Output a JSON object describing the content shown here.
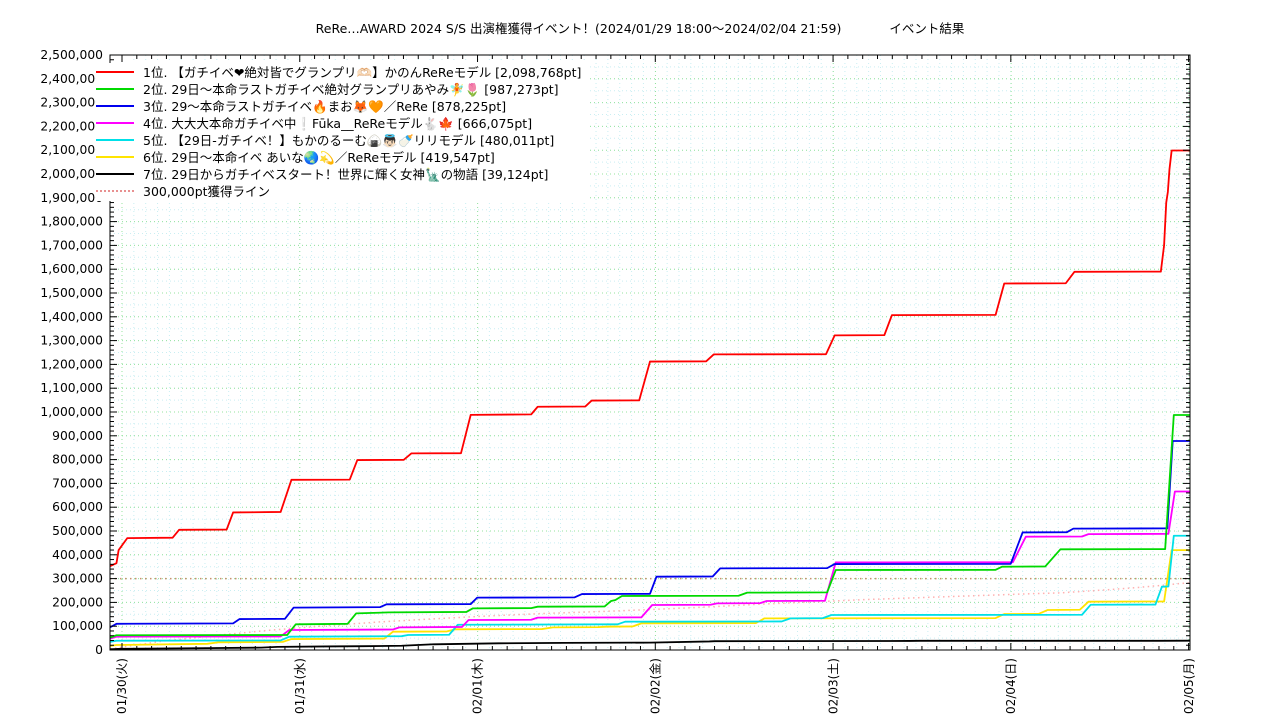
{
  "header": {
    "title": "ReRe…AWARD 2024 S/S 出演権獲得イベント！(2024/01/29 18:00～2024/02/04 21:59)",
    "result_label": "イベント結果"
  },
  "chart_data": {
    "type": "line",
    "title": "ReRe…AWARD 2024 S/S 出演権獲得イベント！(2024/01/29 18:00～2024/02/04 21:59) イベント結果",
    "xlabel": "",
    "ylabel": "",
    "x_axis": {
      "tick_labels": [
        "01/30(火)",
        "01/31(水)",
        "02/01(木)",
        "02/02(金)",
        "02/03(土)",
        "02/04(日)",
        "02/05(月)"
      ],
      "tick_positions": [
        0.0111,
        0.1757,
        0.3404,
        0.5051,
        0.6697,
        0.8344,
        0.9991
      ],
      "minor_ticks_per_day": 12,
      "minor_grid_per_day": 15
    },
    "y_axis": {
      "min": 0,
      "max": 2500000,
      "major_step": 100000,
      "minor_tick_step": 20000,
      "minor_grid_step": 50000
    },
    "grid": {
      "minor_color": "#c9eef2",
      "major_color": "#96e39e",
      "legend_position": "top-left",
      "grid_on": true
    },
    "threshold_line": {
      "label": "300,000pt獲得ライン",
      "value": 300000,
      "color": "#c8906c",
      "legend_color": "#e89090"
    },
    "pace_line": {
      "color": "#ffb0b0",
      "points": [
        [
          0,
          5000
        ],
        [
          0.05,
          38000
        ],
        [
          0.1,
          62000
        ],
        [
          0.15,
          84000
        ],
        [
          0.2,
          102000
        ],
        [
          0.25,
          118000
        ],
        [
          0.3,
          131000
        ],
        [
          0.35,
          143000
        ],
        [
          0.4,
          153000
        ],
        [
          0.45,
          161000
        ],
        [
          0.49,
          168000
        ],
        [
          0.55,
          180000
        ],
        [
          0.6,
          192000
        ],
        [
          0.65,
          202000
        ],
        [
          0.7,
          212000
        ],
        [
          0.75,
          220000
        ],
        [
          0.8,
          228000
        ],
        [
          0.85,
          236000
        ],
        [
          0.88,
          240000
        ],
        [
          0.92,
          252000
        ],
        [
          0.95,
          262000
        ],
        [
          0.975,
          272000
        ],
        [
          0.99,
          279000
        ],
        [
          1,
          282000
        ]
      ]
    },
    "series": [
      {
        "rank": 1,
        "label": "1位. 【ガチイベ❤絶対皆でグランプリ🫶🏻】かのんReReモデル [2,098,768pt]",
        "color": "#ff0000",
        "final_pt": 2098768,
        "points": [
          [
            0,
            352000
          ],
          [
            0.006,
            365000
          ],
          [
            0.008,
            420000
          ],
          [
            0.016,
            470000
          ],
          [
            0.058,
            472000
          ],
          [
            0.064,
            505000
          ],
          [
            0.108,
            506000
          ],
          [
            0.114,
            578000
          ],
          [
            0.158,
            580000
          ],
          [
            0.168,
            715000
          ],
          [
            0.222,
            716000
          ],
          [
            0.229,
            798000
          ],
          [
            0.272,
            799000
          ],
          [
            0.279,
            826000
          ],
          [
            0.325,
            827000
          ],
          [
            0.334,
            988000
          ],
          [
            0.39,
            990000
          ],
          [
            0.396,
            1022000
          ],
          [
            0.44,
            1023000
          ],
          [
            0.446,
            1048000
          ],
          [
            0.49,
            1049000
          ],
          [
            0.5,
            1212000
          ],
          [
            0.552,
            1213000
          ],
          [
            0.559,
            1242000
          ],
          [
            0.663,
            1243000
          ],
          [
            0.671,
            1322000
          ],
          [
            0.717,
            1323000
          ],
          [
            0.724,
            1407000
          ],
          [
            0.82,
            1408000
          ],
          [
            0.828,
            1540000
          ],
          [
            0.885,
            1541000
          ],
          [
            0.893,
            1589000
          ],
          [
            0.973,
            1590000
          ],
          [
            0.976,
            1700000
          ],
          [
            0.978,
            1880000
          ],
          [
            0.9795,
            1925000
          ],
          [
            0.981,
            2020000
          ],
          [
            0.983,
            2098768
          ],
          [
            1,
            2098768
          ]
        ]
      },
      {
        "rank": 2,
        "label": "2位. 29日～本命ラストガチイベ絶対グランプリあやみ🧚🌷 [987,273pt]",
        "color": "#00d900",
        "final_pt": 987273,
        "points": [
          [
            0,
            52000
          ],
          [
            0.006,
            62000
          ],
          [
            0.164,
            63000
          ],
          [
            0.172,
            108000
          ],
          [
            0.22,
            110000
          ],
          [
            0.228,
            154000
          ],
          [
            0.258,
            158000
          ],
          [
            0.33,
            160000
          ],
          [
            0.336,
            175000
          ],
          [
            0.39,
            176000
          ],
          [
            0.396,
            182000
          ],
          [
            0.458,
            183000
          ],
          [
            0.464,
            206000
          ],
          [
            0.468,
            210000
          ],
          [
            0.474,
            227000
          ],
          [
            0.582,
            228000
          ],
          [
            0.59,
            241000
          ],
          [
            0.664,
            242000
          ],
          [
            0.672,
            336000
          ],
          [
            0.82,
            337000
          ],
          [
            0.826,
            350000
          ],
          [
            0.866,
            351000
          ],
          [
            0.88,
            423000
          ],
          [
            0.977,
            424000
          ],
          [
            0.985,
            987273
          ],
          [
            1,
            987273
          ]
        ]
      },
      {
        "rank": 3,
        "label": "3位. 29～本命ラストガチイベ🔥まお🦊🧡／ReRe [878,225pt]",
        "color": "#0000ee",
        "final_pt": 878225,
        "points": [
          [
            0,
            95000
          ],
          [
            0.006,
            110000
          ],
          [
            0.114,
            112000
          ],
          [
            0.12,
            130000
          ],
          [
            0.162,
            131000
          ],
          [
            0.17,
            178000
          ],
          [
            0.25,
            180000
          ],
          [
            0.256,
            192000
          ],
          [
            0.334,
            193000
          ],
          [
            0.34,
            220000
          ],
          [
            0.43,
            221000
          ],
          [
            0.437,
            235000
          ],
          [
            0.5,
            236000
          ],
          [
            0.506,
            308000
          ],
          [
            0.558,
            309000
          ],
          [
            0.565,
            343000
          ],
          [
            0.664,
            344000
          ],
          [
            0.671,
            361000
          ],
          [
            0.834,
            362000
          ],
          [
            0.845,
            494000
          ],
          [
            0.886,
            495000
          ],
          [
            0.892,
            510000
          ],
          [
            0.979,
            511000
          ],
          [
            0.984,
            878225
          ],
          [
            1,
            878225
          ]
        ]
      },
      {
        "rank": 4,
        "label": "4位. 大大大本命ガチイベ中❕Fūka__ReReモデル🐇🍁 [666,075pt]",
        "color": "#ff00ff",
        "final_pt": 666075,
        "points": [
          [
            0,
            48000
          ],
          [
            0.006,
            56000
          ],
          [
            0.158,
            57000
          ],
          [
            0.166,
            84000
          ],
          [
            0.262,
            86000
          ],
          [
            0.268,
            95000
          ],
          [
            0.326,
            97000
          ],
          [
            0.332,
            126000
          ],
          [
            0.39,
            127000
          ],
          [
            0.396,
            136000
          ],
          [
            0.492,
            137000
          ],
          [
            0.502,
            189000
          ],
          [
            0.556,
            190000
          ],
          [
            0.562,
            196000
          ],
          [
            0.602,
            197000
          ],
          [
            0.608,
            206000
          ],
          [
            0.662,
            207000
          ],
          [
            0.672,
            368000
          ],
          [
            0.836,
            369000
          ],
          [
            0.848,
            476000
          ],
          [
            0.9,
            477000
          ],
          [
            0.906,
            487000
          ],
          [
            0.98,
            488000
          ],
          [
            0.986,
            666075
          ],
          [
            1,
            666075
          ]
        ]
      },
      {
        "rank": 5,
        "label": "5位. 【29日-ガチイベ！】もかのるーむ🍙👼🏻🍼リリモデル [480,011pt]",
        "color": "#00e0e8",
        "final_pt": 480011,
        "points": [
          [
            0,
            34000
          ],
          [
            0.006,
            39000
          ],
          [
            0.158,
            40000
          ],
          [
            0.166,
            56000
          ],
          [
            0.27,
            58000
          ],
          [
            0.276,
            63000
          ],
          [
            0.314,
            64000
          ],
          [
            0.322,
            106000
          ],
          [
            0.47,
            108000
          ],
          [
            0.477,
            119000
          ],
          [
            0.622,
            120000
          ],
          [
            0.63,
            133000
          ],
          [
            0.66,
            134000
          ],
          [
            0.668,
            147000
          ],
          [
            0.9,
            148000
          ],
          [
            0.908,
            190000
          ],
          [
            0.968,
            191000
          ],
          [
            0.974,
            266000
          ],
          [
            0.98,
            267000
          ],
          [
            0.985,
            480011
          ],
          [
            1,
            480011
          ]
        ]
      },
      {
        "rank": 6,
        "label": "6位. 29日～本命イベ あいな🌏💫／ReReモデル [419,547pt]",
        "color": "#ffe400",
        "final_pt": 419547,
        "points": [
          [
            0,
            17000
          ],
          [
            0.006,
            21000
          ],
          [
            0.09,
            26000
          ],
          [
            0.1,
            32000
          ],
          [
            0.16,
            34000
          ],
          [
            0.168,
            46000
          ],
          [
            0.254,
            48000
          ],
          [
            0.262,
            77000
          ],
          [
            0.312,
            78000
          ],
          [
            0.32,
            87000
          ],
          [
            0.4,
            88000
          ],
          [
            0.41,
            95000
          ],
          [
            0.452,
            96000
          ],
          [
            0.46,
            98000
          ],
          [
            0.484,
            99000
          ],
          [
            0.492,
            112000
          ],
          [
            0.598,
            113000
          ],
          [
            0.606,
            133000
          ],
          [
            0.82,
            134000
          ],
          [
            0.828,
            151000
          ],
          [
            0.86,
            152000
          ],
          [
            0.868,
            168000
          ],
          [
            0.898,
            169000
          ],
          [
            0.906,
            203000
          ],
          [
            0.976,
            204000
          ],
          [
            0.983,
            419547
          ],
          [
            1,
            419547
          ]
        ]
      },
      {
        "rank": 7,
        "label": "7位. 29日からガチイベスタート！世界に輝く女神🗽の物語 [39,124pt]",
        "color": "#000000",
        "final_pt": 39124,
        "points": [
          [
            0,
            3000
          ],
          [
            0.01,
            5000
          ],
          [
            0.09,
            8000
          ],
          [
            0.14,
            10000
          ],
          [
            0.155,
            13000
          ],
          [
            0.2,
            15000
          ],
          [
            0.235,
            16000
          ],
          [
            0.27,
            18000
          ],
          [
            0.3,
            24000
          ],
          [
            0.36,
            28000
          ],
          [
            0.42,
            30000
          ],
          [
            0.5,
            31000
          ],
          [
            0.555,
            36000
          ],
          [
            0.56,
            37000
          ],
          [
            0.74,
            38000
          ],
          [
            0.75,
            38500
          ],
          [
            0.97,
            38600
          ],
          [
            1,
            39124
          ]
        ]
      }
    ]
  }
}
